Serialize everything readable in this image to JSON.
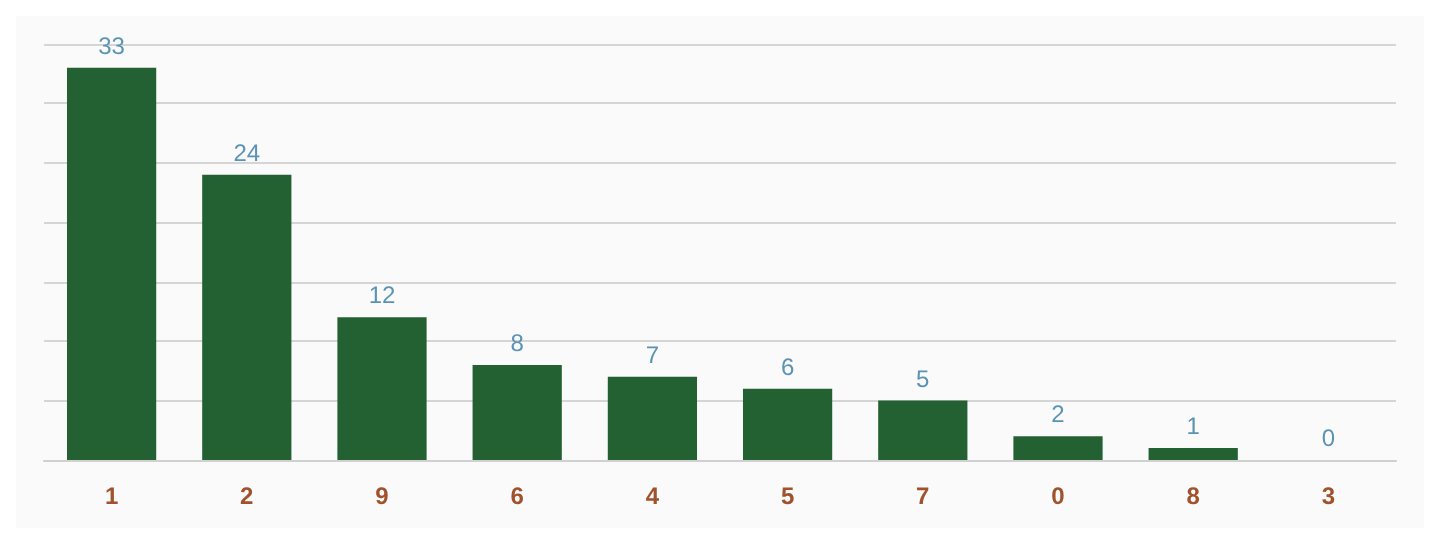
{
  "chart_data": {
    "type": "bar",
    "categories": [
      "1",
      "2",
      "9",
      "6",
      "4",
      "5",
      "7",
      "0",
      "8",
      "3"
    ],
    "values": [
      33,
      24,
      12,
      8,
      7,
      6,
      5,
      2,
      1,
      0
    ],
    "color": "#246132",
    "ylim": [
      0,
      35
    ],
    "yticks": [
      {
        "value": 0,
        "label": null
      },
      {
        "value": 5,
        "label": null
      },
      {
        "value": 10,
        "label": null
      },
      {
        "value": 15,
        "label": null
      },
      {
        "value": 20,
        "label": null
      },
      {
        "value": 25,
        "label": null
      },
      {
        "value": 30,
        "label": null
      },
      {
        "value": 35,
        "label": null
      }
    ],
    "grid": "y",
    "tick_labels": "x",
    "data_labels": true
  }
}
